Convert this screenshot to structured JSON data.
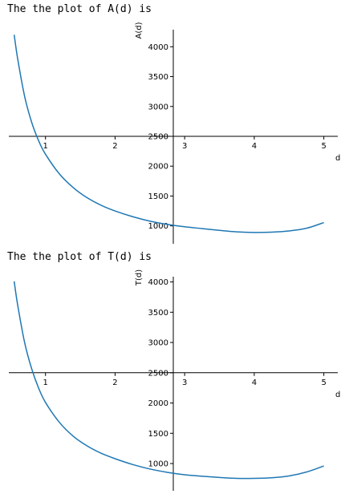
{
  "outputs": [
    {
      "text": "The the plot of A(d) is"
    },
    {
      "text": "The the plot of T(d) is"
    }
  ],
  "chart_data": [
    {
      "type": "line",
      "title": "",
      "xlabel": "d",
      "ylabel": "A(d)",
      "xticks": [
        1,
        2,
        3,
        4,
        5
      ],
      "yticks": [
        1000,
        1500,
        2000,
        2500,
        3000,
        3500,
        4000
      ],
      "xlim": [
        0.45,
        5.2
      ],
      "ylim": [
        700,
        4380
      ],
      "color": "#1f77b4",
      "series": [
        {
          "x": [
            0.55,
            0.6,
            0.7,
            0.8,
            0.9,
            1.0,
            1.2,
            1.4,
            1.6,
            1.8,
            2.0,
            2.25,
            2.5,
            2.75,
            3.0,
            3.25,
            3.5,
            3.75,
            4.0,
            4.25,
            4.5,
            4.75,
            5.0
          ],
          "y": [
            4200,
            3800,
            3170,
            2740,
            2430,
            2200,
            1870,
            1640,
            1470,
            1345,
            1250,
            1155,
            1080,
            1025,
            985,
            955,
            925,
            900,
            890,
            895,
            915,
            960,
            1055
          ]
        }
      ]
    },
    {
      "type": "line",
      "title": "",
      "xlabel": "d",
      "ylabel": "T(d)",
      "xticks": [
        1,
        2,
        3,
        4,
        5
      ],
      "yticks": [
        1000,
        1500,
        2000,
        2500,
        3000,
        3500,
        4000
      ],
      "xlim": [
        0.45,
        5.2
      ],
      "ylim": [
        550,
        4180
      ],
      "color": "#1f77b4",
      "series": [
        {
          "x": [
            0.55,
            0.6,
            0.7,
            0.8,
            0.9,
            1.0,
            1.2,
            1.4,
            1.6,
            1.8,
            2.0,
            2.25,
            2.5,
            2.75,
            3.0,
            3.25,
            3.5,
            3.75,
            4.0,
            4.25,
            4.5,
            4.75,
            5.0
          ],
          "y": [
            4010,
            3620,
            3000,
            2570,
            2250,
            2010,
            1680,
            1450,
            1290,
            1170,
            1080,
            985,
            910,
            855,
            815,
            790,
            770,
            755,
            755,
            765,
            795,
            860,
            960
          ]
        }
      ]
    }
  ]
}
